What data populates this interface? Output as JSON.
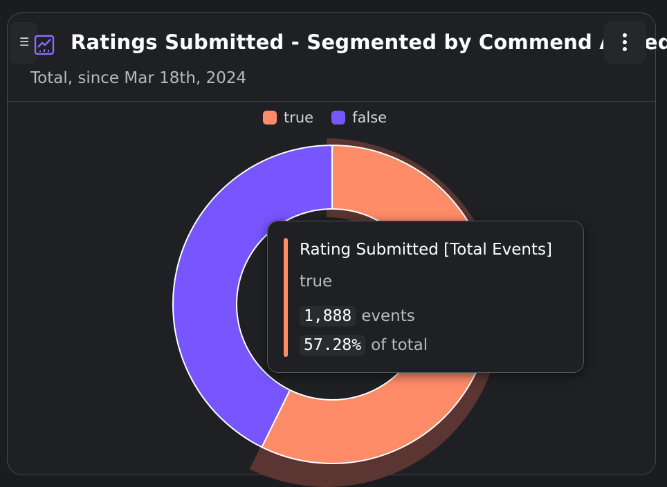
{
  "card": {
    "title": "Ratings Submitted - Segmented by Commend Added",
    "subtitle": "Total, since Mar 18th, 2024",
    "handle_icon": "drag-handle-icon",
    "chart_icon": "line-chart-icon",
    "menu_icon": "more-vertical-icon"
  },
  "colors": {
    "true": "#ff8c69",
    "false": "#7856ff",
    "highlight": "#5a3531"
  },
  "legend": [
    {
      "label": "true"
    },
    {
      "label": "false"
    }
  ],
  "tooltip": {
    "title": "Rating Submitted [Total Events]",
    "segment": "true",
    "events_value": "1,888",
    "events_label": "events",
    "percent_value": "57.28%",
    "percent_label": "of total"
  },
  "chart_data": {
    "type": "pie",
    "categories": [
      "true",
      "false"
    ],
    "values": [
      1888,
      1408
    ],
    "percent": [
      57.28,
      42.72
    ],
    "highlighted": "true"
  }
}
